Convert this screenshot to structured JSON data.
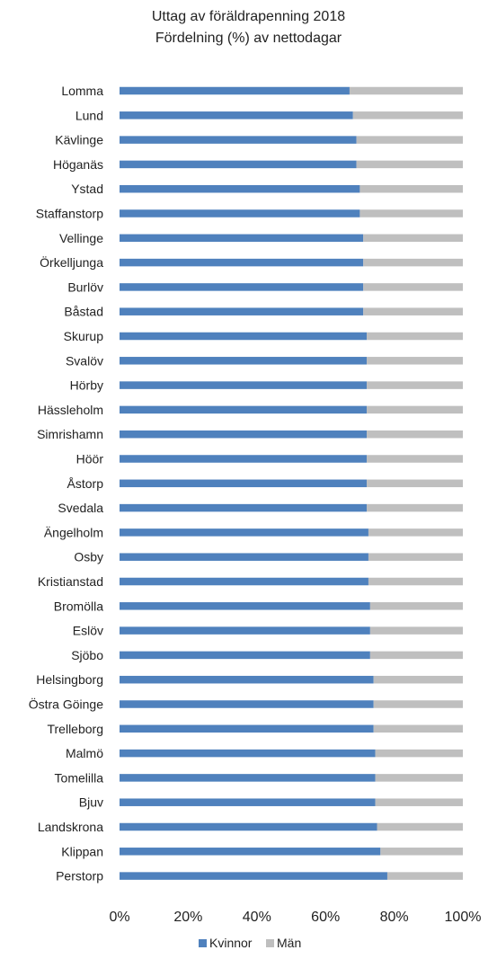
{
  "chart_data": {
    "type": "bar",
    "orientation": "horizontal",
    "stacked": true,
    "title": "Uttag av föräldrapenning 2018",
    "subtitle": "Fördelning (%) av nettodagar",
    "categories": [
      "Lomma",
      "Lund",
      "Kävlinge",
      "Höganäs",
      "Ystad",
      "Staffanstorp",
      "Vellinge",
      "Örkelljunga",
      "Burlöv",
      "Båstad",
      "Skurup",
      "Svalöv",
      "Hörby",
      "Hässleholm",
      "Simrishamn",
      "Höör",
      "Åstorp",
      "Svedala",
      "Ängelholm",
      "Osby",
      "Kristianstad",
      "Bromölla",
      "Eslöv",
      "Sjöbo",
      "Helsingborg",
      "Östra Göinge",
      "Trelleborg",
      "Malmö",
      "Tomelilla",
      "Bjuv",
      "Landskrona",
      "Klippan",
      "Perstorp"
    ],
    "series": [
      {
        "name": "Kvinnor",
        "color": "#4f81bd",
        "values": [
          67,
          68,
          69,
          69,
          70,
          70,
          71,
          71,
          71,
          71,
          72,
          72,
          72,
          72,
          72,
          72,
          72,
          72,
          72.5,
          72.5,
          72.5,
          73,
          73,
          73,
          74,
          74,
          74,
          74.5,
          74.5,
          74.5,
          75,
          76,
          78
        ]
      },
      {
        "name": "Män",
        "color": "#bfbfbf",
        "values": [
          33,
          32,
          31,
          31,
          30,
          30,
          29,
          29,
          29,
          29,
          28,
          28,
          28,
          28,
          28,
          28,
          28,
          28,
          27.5,
          27.5,
          27.5,
          27,
          27,
          27,
          26,
          26,
          26,
          25.5,
          25.5,
          25.5,
          25,
          24,
          22
        ]
      }
    ],
    "xlim": [
      0,
      100
    ],
    "xticks": [
      "0%",
      "20%",
      "40%",
      "60%",
      "80%",
      "100%"
    ],
    "grid": false,
    "legend_position": "bottom"
  }
}
